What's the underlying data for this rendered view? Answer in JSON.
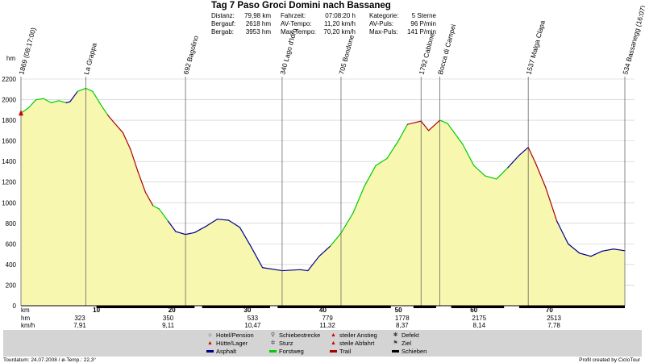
{
  "header": {
    "title": "Tag 7 Paso Groci Domini nach Bassaneg",
    "stats": [
      {
        "label": "Distanz:",
        "value": "79,98 km"
      },
      {
        "label": "Bergauf:",
        "value": "2618 hm"
      },
      {
        "label": "Bergab:",
        "value": "3953 hm"
      },
      {
        "label": "Fahrzeit:",
        "value": "07:08:20 h"
      },
      {
        "label": "AV-Tempo:",
        "value": "11,20 km/h"
      },
      {
        "label": "Max-Tempo:",
        "value": "70,20 km/h"
      },
      {
        "label": "Kategorie:",
        "value": "5 Sterne"
      },
      {
        "label": "AV-Puls:",
        "value": "96 P/min"
      },
      {
        "label": "Max-Puls:",
        "value": "141 P/min"
      }
    ]
  },
  "chart_data": {
    "type": "area",
    "ylabel": "hm",
    "xlabel": "km",
    "ylim": [
      0,
      2200
    ],
    "xlim": [
      0,
      80
    ],
    "y_ticks": [
      0,
      200,
      400,
      600,
      800,
      1000,
      1200,
      1400,
      1600,
      1800,
      2000,
      2200
    ],
    "x_ticks": [
      10,
      20,
      30,
      40,
      50,
      60,
      70
    ],
    "grid": true,
    "fill_color": "#f7f7b0",
    "surface_colors": {
      "asphalt": "#00008b",
      "forstweg": "#00cc00",
      "trail": "#aa0000"
    },
    "profile": [
      {
        "x": 0,
        "y": 1869,
        "surface": "trail"
      },
      {
        "x": 1,
        "y": 1920,
        "surface": "forstweg"
      },
      {
        "x": 2,
        "y": 2000,
        "surface": "forstweg"
      },
      {
        "x": 3,
        "y": 2010,
        "surface": "forstweg"
      },
      {
        "x": 4,
        "y": 1970,
        "surface": "forstweg"
      },
      {
        "x": 5,
        "y": 1990,
        "surface": "forstweg"
      },
      {
        "x": 6,
        "y": 1970,
        "surface": "forstweg"
      },
      {
        "x": 6.5,
        "y": 1980,
        "surface": "asphalt"
      },
      {
        "x": 7.5,
        "y": 2080,
        "surface": "asphalt"
      },
      {
        "x": 8.6,
        "y": 2110,
        "surface": "forstweg"
      },
      {
        "x": 9.5,
        "y": 2080,
        "surface": "forstweg"
      },
      {
        "x": 10.5,
        "y": 1960,
        "surface": "forstweg"
      },
      {
        "x": 11.5,
        "y": 1850,
        "surface": "forstweg"
      },
      {
        "x": 12.3,
        "y": 1780,
        "surface": "trail"
      },
      {
        "x": 13.5,
        "y": 1680,
        "surface": "trail"
      },
      {
        "x": 14.5,
        "y": 1520,
        "surface": "trail"
      },
      {
        "x": 15.5,
        "y": 1300,
        "surface": "trail"
      },
      {
        "x": 16.5,
        "y": 1100,
        "surface": "trail"
      },
      {
        "x": 17.5,
        "y": 970,
        "surface": "trail"
      },
      {
        "x": 18.3,
        "y": 940,
        "surface": "forstweg"
      },
      {
        "x": 19.5,
        "y": 820,
        "surface": "forstweg"
      },
      {
        "x": 20.5,
        "y": 720,
        "surface": "asphalt"
      },
      {
        "x": 21.8,
        "y": 692,
        "surface": "asphalt"
      },
      {
        "x": 23,
        "y": 710,
        "surface": "asphalt"
      },
      {
        "x": 24.5,
        "y": 770,
        "surface": "asphalt"
      },
      {
        "x": 26,
        "y": 840,
        "surface": "asphalt"
      },
      {
        "x": 27.5,
        "y": 830,
        "surface": "asphalt"
      },
      {
        "x": 29,
        "y": 760,
        "surface": "asphalt"
      },
      {
        "x": 30.5,
        "y": 570,
        "surface": "asphalt"
      },
      {
        "x": 32,
        "y": 370,
        "surface": "asphalt"
      },
      {
        "x": 34.6,
        "y": 340,
        "surface": "asphalt"
      },
      {
        "x": 37,
        "y": 350,
        "surface": "asphalt"
      },
      {
        "x": 38,
        "y": 340,
        "surface": "asphalt"
      },
      {
        "x": 39.5,
        "y": 480,
        "surface": "asphalt"
      },
      {
        "x": 41,
        "y": 580,
        "surface": "asphalt"
      },
      {
        "x": 42.4,
        "y": 705,
        "surface": "forstweg"
      },
      {
        "x": 44,
        "y": 900,
        "surface": "forstweg"
      },
      {
        "x": 45.5,
        "y": 1160,
        "surface": "forstweg"
      },
      {
        "x": 47,
        "y": 1360,
        "surface": "forstweg"
      },
      {
        "x": 48.5,
        "y": 1430,
        "surface": "forstweg"
      },
      {
        "x": 50,
        "y": 1600,
        "surface": "forstweg"
      },
      {
        "x": 51.2,
        "y": 1760,
        "surface": "forstweg"
      },
      {
        "x": 53,
        "y": 1792,
        "surface": "trail"
      },
      {
        "x": 54,
        "y": 1700,
        "surface": "trail"
      },
      {
        "x": 55.5,
        "y": 1800,
        "surface": "trail"
      },
      {
        "x": 56.5,
        "y": 1770,
        "surface": "forstweg"
      },
      {
        "x": 58.5,
        "y": 1570,
        "surface": "forstweg"
      },
      {
        "x": 60,
        "y": 1360,
        "surface": "forstweg"
      },
      {
        "x": 61.5,
        "y": 1260,
        "surface": "forstweg"
      },
      {
        "x": 63,
        "y": 1230,
        "surface": "forstweg"
      },
      {
        "x": 64.5,
        "y": 1340,
        "surface": "forstweg"
      },
      {
        "x": 66,
        "y": 1460,
        "surface": "asphalt"
      },
      {
        "x": 67.2,
        "y": 1537,
        "surface": "asphalt"
      },
      {
        "x": 68.2,
        "y": 1380,
        "surface": "trail"
      },
      {
        "x": 69.5,
        "y": 1150,
        "surface": "trail"
      },
      {
        "x": 71,
        "y": 820,
        "surface": "trail"
      },
      {
        "x": 72.5,
        "y": 600,
        "surface": "asphalt"
      },
      {
        "x": 74,
        "y": 510,
        "surface": "asphalt"
      },
      {
        "x": 75.5,
        "y": 480,
        "surface": "asphalt"
      },
      {
        "x": 77,
        "y": 530,
        "surface": "asphalt"
      },
      {
        "x": 78.5,
        "y": 550,
        "surface": "asphalt"
      },
      {
        "x": 80,
        "y": 534,
        "surface": "asphalt"
      }
    ],
    "waypoints": [
      {
        "x": 0,
        "label": "1869 (08:17:00)"
      },
      {
        "x": 8.6,
        "label": "La Grappa"
      },
      {
        "x": 21.8,
        "label": "692 Bagolino"
      },
      {
        "x": 34.6,
        "label": "340 Lago d'Idro"
      },
      {
        "x": 42.4,
        "label": "705 Bondone"
      },
      {
        "x": 53,
        "label": "1792 Cablone"
      },
      {
        "x": 55.5,
        "label": "Bocca di Campei"
      },
      {
        "x": 67.2,
        "label": "1537 Malga Clapa"
      },
      {
        "x": 80,
        "label": "534 Bassanegg (16:07)"
      }
    ],
    "rows": [
      {
        "label": "km",
        "values": [
          {
            "x": 10,
            "v": "10"
          },
          {
            "x": 20,
            "v": "20"
          },
          {
            "x": 30,
            "v": "30"
          },
          {
            "x": 40,
            "v": "40"
          },
          {
            "x": 50,
            "v": "50"
          },
          {
            "x": 60,
            "v": "60"
          },
          {
            "x": 70,
            "v": "70"
          }
        ]
      },
      {
        "label": "hm",
        "color": "#cc0000",
        "values": [
          {
            "x": 7.8,
            "v": "323"
          },
          {
            "x": 19.5,
            "v": "350"
          },
          {
            "x": 30.7,
            "v": "533"
          },
          {
            "x": 40.6,
            "v": "779"
          },
          {
            "x": 50.5,
            "v": "1778"
          },
          {
            "x": 60.7,
            "v": "2175"
          },
          {
            "x": 70.6,
            "v": "2513"
          }
        ]
      },
      {
        "label": "km/h",
        "values": [
          {
            "x": 7.8,
            "v": "7,91"
          },
          {
            "x": 19.5,
            "v": "9,11"
          },
          {
            "x": 30.7,
            "v": "10,47"
          },
          {
            "x": 40.6,
            "v": "11,32"
          },
          {
            "x": 50.5,
            "v": "8,37"
          },
          {
            "x": 60.7,
            "v": "8,14"
          },
          {
            "x": 70.6,
            "v": "7,78"
          }
        ]
      }
    ],
    "push_segments": [
      [
        10,
        23
      ],
      [
        24,
        33
      ],
      [
        34,
        49
      ],
      [
        52,
        55
      ],
      [
        57,
        64
      ],
      [
        66,
        80
      ]
    ]
  },
  "legend": {
    "items": [
      {
        "icon": "hotel-icon",
        "symbol": "⌂",
        "color": "#444444",
        "label": "Hotel/Pension"
      },
      {
        "icon": "hut-icon",
        "symbol": "▲",
        "color": "#cc0000",
        "label": "Hütte/Lager"
      },
      {
        "icon": "asphalt-line-icon",
        "line": "#00008b",
        "label": "Asphalt"
      },
      {
        "icon": "push-icon",
        "symbol": "⚲",
        "color": "#444444",
        "label": "Schiebestrecke"
      },
      {
        "icon": "fall-icon",
        "symbol": "✲",
        "color": "#444444",
        "label": "Sturz"
      },
      {
        "icon": "forest-road-line-icon",
        "line": "#00cc00",
        "label": "Forstweg"
      },
      {
        "icon": "steep-up-icon",
        "symbol": "▲",
        "color": "#cc0000",
        "label": "steiler Anstieg"
      },
      {
        "icon": "steep-down-icon",
        "symbol": "▲",
        "color": "#cc0000",
        "label": "steile Abfahrt"
      },
      {
        "icon": "trail-line-icon",
        "line": "#aa0000",
        "label": "Trail"
      },
      {
        "icon": "defect-icon",
        "symbol": "✱",
        "color": "#444444",
        "label": "Defekt"
      },
      {
        "icon": "finish-flag-icon",
        "symbol": "⚑",
        "color": "#444444",
        "label": "Ziel"
      },
      {
        "icon": "push-line-icon",
        "line": "#000000",
        "label": "Schieben"
      }
    ]
  },
  "footer": {
    "left": "Tourdatum: 24.07.2008 / ø-Temp.: 22,3°",
    "right": "Profil created by CicloTour"
  }
}
